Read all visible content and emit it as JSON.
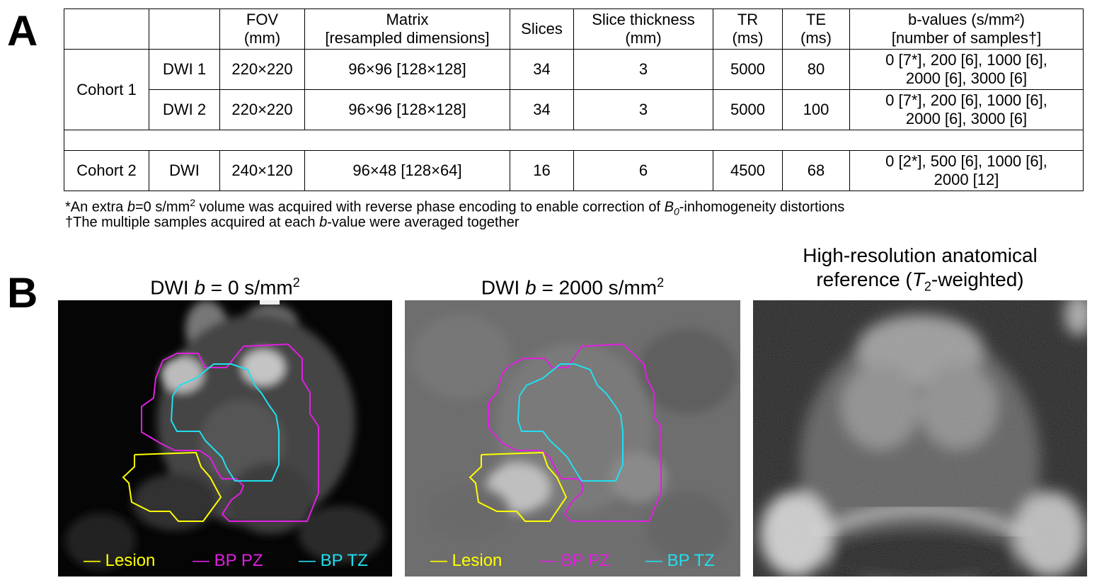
{
  "panels": {
    "a": "A",
    "b": "B"
  },
  "table": {
    "headers": [
      {
        "lines": [
          ""
        ]
      },
      {
        "lines": [
          ""
        ]
      },
      {
        "lines": [
          "FOV",
          "(mm)"
        ]
      },
      {
        "lines": [
          "Matrix",
          "[resampled dimensions]"
        ]
      },
      {
        "lines": [
          "Slices"
        ]
      },
      {
        "lines": [
          "Slice thickness",
          "(mm)"
        ]
      },
      {
        "lines": [
          "TR",
          "(ms)"
        ]
      },
      {
        "lines": [
          "TE",
          "(ms)"
        ]
      },
      {
        "lines": [
          "b-values (s/mm²)",
          "[number of samples†]"
        ]
      }
    ],
    "cohort1": {
      "label": "Cohort 1",
      "rows": [
        {
          "seq": "DWI 1",
          "fov": "220×220",
          "matrix": "96×96 [128×128]",
          "slices": "34",
          "thickness": "3",
          "tr": "5000",
          "te": "80",
          "b1": "0 [7*], 200 [6], 1000 [6],",
          "b2": "2000 [6], 3000 [6]"
        },
        {
          "seq": "DWI 2",
          "fov": "220×220",
          "matrix": "96×96 [128×128]",
          "slices": "34",
          "thickness": "3",
          "tr": "5000",
          "te": "100",
          "b1": "0 [7*], 200 [6], 1000 [6],",
          "b2": "2000 [6], 3000 [6]"
        }
      ]
    },
    "cohort2": {
      "label": "Cohort 2",
      "row": {
        "seq": "DWI",
        "fov": "240×120",
        "matrix": "96×48 [128×64]",
        "slices": "16",
        "thickness": "6",
        "tr": "4500",
        "te": "68",
        "b1": "0 [2*], 500 [6], 1000 [6],",
        "b2": "2000 [12]"
      }
    }
  },
  "footnotes": {
    "star": {
      "p1": "*An extra ",
      "b": "b",
      "p2": "=0 s/mm",
      "sup": "2",
      "p3": " volume was acquired with reverse phase encoding to enable correction of ",
      "b0": "B",
      "b0sub": "0",
      "p4": "-inhomogeneity distortions"
    },
    "dagger": {
      "p1": "†The multiple samples acquired at each ",
      "b": "b",
      "p2": "-value were averaged together"
    }
  },
  "images": {
    "b0": {
      "pre": "DWI ",
      "b": "b",
      "post": " = 0 s/mm",
      "sup": "2"
    },
    "b2000": {
      "pre": "DWI ",
      "b": "b",
      "post": " = 2000 s/mm",
      "sup": "2"
    },
    "t2": {
      "line1": "High-resolution anatomical",
      "pre": "reference (",
      "t": "T",
      "sub": "2",
      "post": "-weighted)"
    }
  },
  "legend": {
    "lesion": "— Lesion",
    "pz": "— BP PZ",
    "tz": "— BP TZ"
  },
  "colors": {
    "lesion": "#ffff00",
    "pz": "#e020e0",
    "tz": "#20e0f0"
  }
}
